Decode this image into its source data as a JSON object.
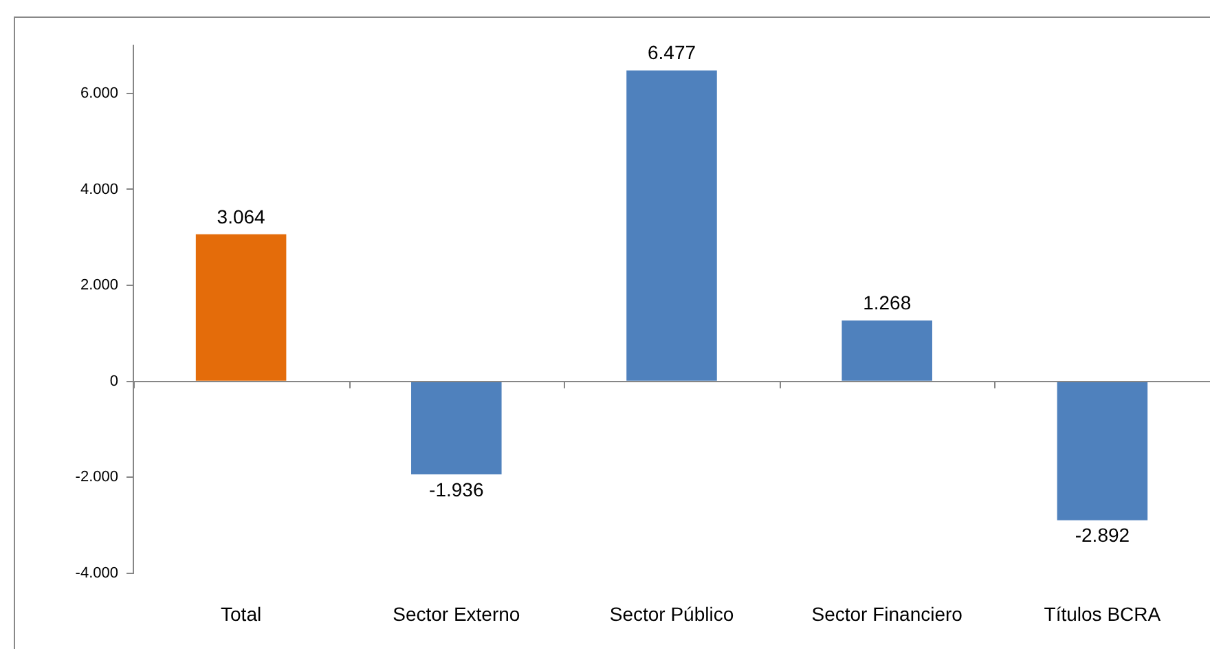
{
  "chart_data": {
    "type": "bar",
    "categories": [
      "Total",
      "Sector Externo",
      "Sector Público",
      "Sector Financiero",
      "Títulos BCRA"
    ],
    "values": [
      3064,
      -1936,
      6477,
      1268,
      -2892
    ],
    "colors": [
      "#e46c0a",
      "#4f81bd",
      "#4f81bd",
      "#4f81bd",
      "#4f81bd"
    ],
    "value_labels": [
      "3.064",
      "-1.936",
      "6.477",
      "1.268",
      "-2.892"
    ],
    "ylim": [
      -4000,
      7000
    ],
    "yticks": [
      {
        "value": -4000,
        "label": "-4.000"
      },
      {
        "value": -2000,
        "label": "-2.000"
      },
      {
        "value": 0,
        "label": "0"
      },
      {
        "value": 2000,
        "label": "2.000"
      },
      {
        "value": 4000,
        "label": "4.000"
      },
      {
        "value": 6000,
        "label": "6.000"
      }
    ],
    "ref_lines": [
      {
        "axis": "y",
        "value": 0,
        "color": "#868686"
      }
    ],
    "grid": false,
    "legend": false
  }
}
